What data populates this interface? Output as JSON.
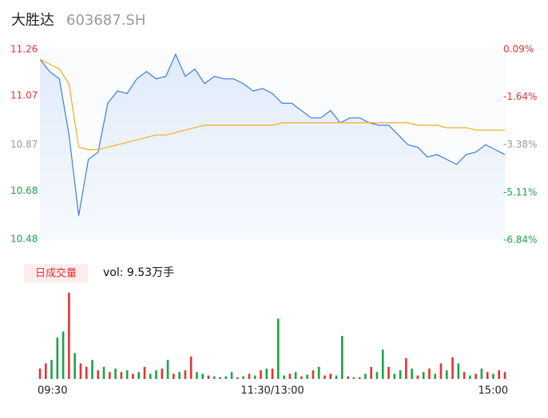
{
  "header": {
    "title": "大胜达",
    "code": "603687.SH"
  },
  "chart_data": [
    {
      "type": "line",
      "x": [
        0,
        5,
        10,
        15,
        20,
        25,
        30,
        35,
        40,
        45,
        50,
        55,
        60,
        65,
        70,
        75,
        80,
        85,
        90,
        95,
        100,
        105,
        110,
        115,
        120,
        125,
        130,
        135,
        140,
        145,
        150,
        155,
        160,
        165,
        170,
        175,
        180,
        185,
        190,
        195,
        200,
        205,
        210,
        215,
        220,
        225,
        230,
        235,
        240
      ],
      "series": [
        {
          "color": "#3d7ee0",
          "fill": true,
          "values": [
            11.22,
            11.17,
            11.14,
            10.91,
            10.58,
            10.81,
            10.84,
            11.04,
            11.09,
            11.08,
            11.14,
            11.17,
            11.14,
            11.15,
            11.24,
            11.15,
            11.18,
            11.12,
            11.15,
            11.14,
            11.14,
            11.12,
            11.09,
            11.1,
            11.08,
            11.04,
            11.04,
            11.01,
            10.98,
            10.98,
            11.01,
            10.96,
            10.98,
            10.98,
            10.96,
            10.95,
            10.95,
            10.91,
            10.87,
            10.86,
            10.82,
            10.83,
            10.81,
            10.79,
            10.83,
            10.84,
            10.87,
            10.85,
            10.83
          ]
        },
        {
          "color": "#f0b020",
          "fill": false,
          "values": [
            11.22,
            11.2,
            11.18,
            11.12,
            10.86,
            10.85,
            10.85,
            10.86,
            10.87,
            10.88,
            10.89,
            10.9,
            10.91,
            10.91,
            10.92,
            10.93,
            10.94,
            10.95,
            10.95,
            10.95,
            10.95,
            10.95,
            10.95,
            10.95,
            10.95,
            10.96,
            10.96,
            10.96,
            10.96,
            10.96,
            10.96,
            10.96,
            10.96,
            10.96,
            10.96,
            10.96,
            10.96,
            10.96,
            10.96,
            10.95,
            10.95,
            10.95,
            10.94,
            10.94,
            10.94,
            10.93,
            10.93,
            10.93,
            10.93
          ]
        }
      ],
      "xlim": [
        0,
        240
      ],
      "ylim": [
        10.48,
        11.26
      ],
      "yticks": [
        10.48,
        10.68,
        10.87,
        11.07,
        11.26
      ],
      "y2lim": [
        -6.84,
        0.09
      ],
      "y2ticks": [
        {
          "value": -6.84,
          "label": "-6.84%"
        },
        {
          "value": -5.11,
          "label": "-5.11%"
        },
        {
          "value": -3.38,
          "label": "-3.38%"
        },
        {
          "value": -1.64,
          "label": "-1.64%"
        },
        {
          "value": 0.09,
          "label": "0.09%"
        }
      ],
      "tick_colors": [
        "#1aa34a",
        "#1aa34a",
        "#999999",
        "#e63232",
        "#e63232"
      ]
    },
    {
      "type": "bar",
      "legend": "日成交量",
      "annotation": "vol: 9.53万手",
      "x": [
        0,
        3,
        6,
        9,
        12,
        15,
        18,
        21,
        24,
        27,
        30,
        33,
        36,
        39,
        42,
        45,
        48,
        51,
        54,
        57,
        60,
        63,
        66,
        69,
        72,
        75,
        78,
        81,
        84,
        87,
        90,
        93,
        96,
        99,
        102,
        105,
        108,
        111,
        114,
        117,
        120,
        123,
        126,
        129,
        132,
        135,
        138,
        141,
        144,
        147,
        150,
        153,
        156,
        159,
        162,
        165,
        168,
        171,
        174,
        177,
        180,
        183,
        186,
        189,
        192,
        195,
        198,
        201,
        204,
        207,
        210,
        213,
        216,
        219,
        222,
        225,
        228,
        231,
        234,
        237,
        240
      ],
      "values": [
        12,
        18,
        22,
        48,
        55,
        100,
        30,
        18,
        14,
        22,
        10,
        14,
        8,
        12,
        8,
        10,
        6,
        8,
        14,
        6,
        10,
        12,
        22,
        6,
        8,
        10,
        26,
        8,
        6,
        4,
        3,
        2,
        3,
        8,
        2,
        3,
        6,
        4,
        10,
        12,
        12,
        70,
        4,
        6,
        8,
        3,
        5,
        10,
        14,
        4,
        6,
        4,
        50,
        3,
        2,
        2,
        6,
        14,
        8,
        34,
        14,
        6,
        10,
        24,
        12,
        4,
        8,
        12,
        6,
        18,
        10,
        25,
        18,
        8,
        4,
        6,
        12,
        8,
        6,
        10,
        8
      ],
      "directions": [
        "up",
        "up",
        "down",
        "down",
        "down",
        "up",
        "down",
        "up",
        "up",
        "down",
        "up",
        "down",
        "up",
        "down",
        "up",
        "down",
        "up",
        "down",
        "up",
        "down",
        "down",
        "up",
        "down",
        "up",
        "down",
        "up",
        "up",
        "down",
        "down",
        "up",
        "down",
        "up",
        "down",
        "down",
        "up",
        "down",
        "up",
        "down",
        "up",
        "down",
        "up",
        "down",
        "down",
        "up",
        "down",
        "up",
        "down",
        "up",
        "down",
        "up",
        "up",
        "down",
        "down",
        "up",
        "down",
        "up",
        "down",
        "up",
        "down",
        "down",
        "up",
        "down",
        "down",
        "up",
        "down",
        "up",
        "down",
        "up",
        "down",
        "up",
        "down",
        "up",
        "down",
        "up",
        "down",
        "up",
        "down",
        "up",
        "down",
        "up",
        "up"
      ],
      "up_color": "#e63232",
      "down_color": "#1aa34a",
      "xlim": [
        0,
        240
      ],
      "ylim": [
        0,
        100
      ],
      "xticks": [
        {
          "value": 0,
          "label": "09:30"
        },
        {
          "value": 120,
          "label": "11:30/13:00"
        },
        {
          "value": 240,
          "label": "15:00"
        }
      ]
    }
  ]
}
